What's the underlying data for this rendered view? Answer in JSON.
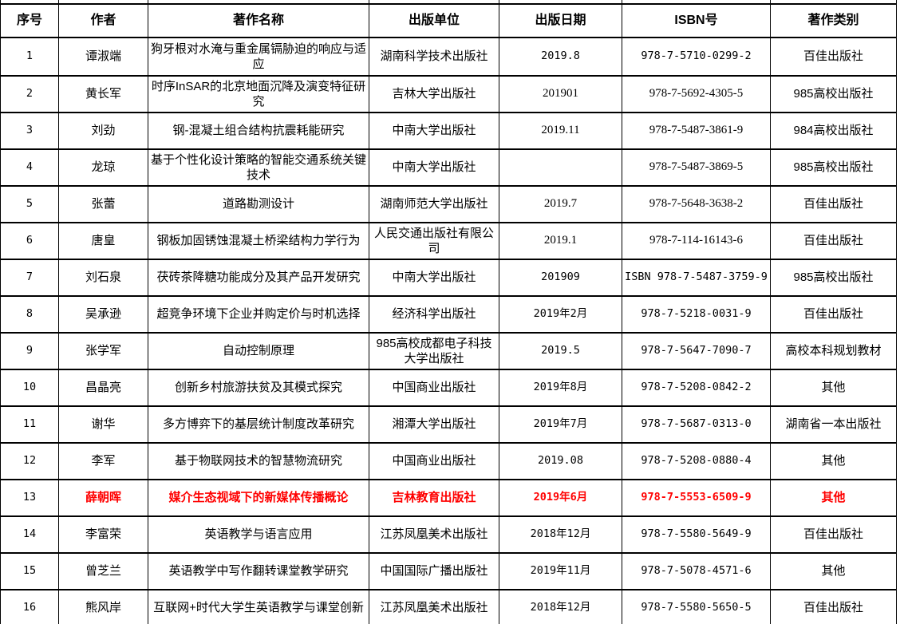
{
  "colors": {
    "text": "#000000",
    "highlight_text": "#FF0000",
    "border": "#000000",
    "background": "#FFFFFF"
  },
  "table": {
    "columns": [
      {
        "key": "serial",
        "label": "序号"
      },
      {
        "key": "author",
        "label": "作者"
      },
      {
        "key": "title",
        "label": "著作名称"
      },
      {
        "key": "publisher",
        "label": "出版单位"
      },
      {
        "key": "date",
        "label": "出版日期"
      },
      {
        "key": "isbn",
        "label": "ISBN号"
      },
      {
        "key": "category",
        "label": "著作类别"
      }
    ],
    "rows": [
      {
        "serial": "1",
        "author": "谭淑端",
        "title": "狗牙根对水淹与重金属镉胁迫的响应与适应",
        "publisher": "湖南科学技术出版社",
        "date": "2019.8",
        "isbn": "978-7-5710-0299-2",
        "category": "百佳出版社"
      },
      {
        "serial": "2",
        "author": "黄长军",
        "title": "时序InSAR的北京地面沉降及演变特征研究",
        "publisher": "吉林大学出版社",
        "date": "201901",
        "isbn": "978-7-5692-4305-5",
        "category": "985高校出版社"
      },
      {
        "serial": "3",
        "author": "刘劲",
        "title": "钢-混凝土组合结构抗震耗能研究",
        "publisher": "中南大学出版社",
        "date": "2019.11",
        "isbn": "978-7-5487-3861-9",
        "category": "984高校出版社"
      },
      {
        "serial": "4",
        "author": "龙琼",
        "title": "基于个性化设计策略的智能交通系统关键技术",
        "publisher": "中南大学出版社",
        "date": "",
        "isbn": "978-7-5487-3869-5",
        "category": "985高校出版社"
      },
      {
        "serial": "5",
        "author": "张蕾",
        "title": "道路勘测设计",
        "publisher": "湖南师范大学出版社",
        "date": "2019.7",
        "isbn": "978-7-5648-3638-2",
        "category": "百佳出版社"
      },
      {
        "serial": "6",
        "author": "唐皇",
        "title": "钢板加固锈蚀混凝土桥梁结构力学行为",
        "publisher": "人民交通出版社有限公司",
        "date": "2019.1",
        "isbn": "978-7-114-16143-6",
        "category": "百佳出版社"
      },
      {
        "serial": "7",
        "author": "刘石泉",
        "title": "茯砖茶降糖功能成分及其产品开发研究",
        "publisher": "中南大学出版社",
        "date": "201909",
        "isbn": "ISBN 978-7-5487-3759-9",
        "category": "985高校出版社"
      },
      {
        "serial": "8",
        "author": "吴承逊",
        "title": "超竞争环境下企业并购定价与时机选择",
        "publisher": "经济科学出版社",
        "date": "2019年2月",
        "isbn": "978-7-5218-0031-9",
        "category": "百佳出版社"
      },
      {
        "serial": "9",
        "author": "张学军",
        "title": "自动控制原理",
        "publisher": "985高校成都电子科技大学出版社",
        "date": "2019.5",
        "isbn": "978-7-5647-7090-7",
        "category": "高校本科规划教材",
        "align": "left"
      },
      {
        "serial": "10",
        "author": "昌晶亮",
        "title": "创新乡村旅游扶贫及其模式探究",
        "publisher": "中国商业出版社",
        "date": "2019年8月",
        "isbn": "978-7-5208-0842-2",
        "category": "其他"
      },
      {
        "serial": "11",
        "author": "谢华",
        "title": "多方博弈下的基层统计制度改革研究",
        "publisher": "湘潭大学出版社",
        "date": "2019年7月",
        "isbn": "978-7-5687-0313-0",
        "category": "湖南省一本出版社"
      },
      {
        "serial": "12",
        "author": "李军",
        "title": "基于物联网技术的智慧物流研究",
        "publisher": "中国商业出版社",
        "date": "2019.08",
        "isbn": "978-7-5208-0880-4",
        "category": "其他"
      },
      {
        "serial": "13",
        "author": "薛朝晖",
        "title": "媒介生态视域下的新媒体传播概论",
        "publisher": "吉林教育出版社",
        "date": "2019年6月",
        "isbn": "978-7-5553-6509-9",
        "category": "其他",
        "highlight": true
      },
      {
        "serial": "14",
        "author": "李富荣",
        "title": "英语教学与语言应用",
        "publisher": "江苏凤凰美术出版社",
        "date": "2018年12月",
        "isbn": "978-7-5580-5649-9",
        "category": "百佳出版社"
      },
      {
        "serial": "15",
        "author": "曾芝兰",
        "title": "英语教学中写作翻转课堂教学研究",
        "publisher": "中国国际广播出版社",
        "date": "2019年11月",
        "isbn": "978-7-5078-4571-6",
        "category": "其他"
      },
      {
        "serial": "16",
        "author": "熊风岸",
        "title": "互联网+时代大学生英语教学与课堂创新",
        "publisher": "江苏凤凰美术出版社",
        "date": "2018年12月",
        "isbn": "978-7-5580-5650-5",
        "category": "百佳出版社"
      }
    ]
  }
}
